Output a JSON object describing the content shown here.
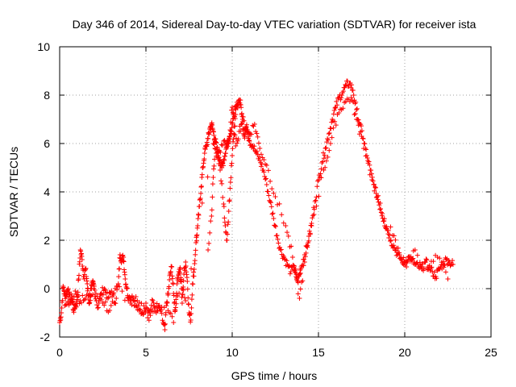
{
  "chart_data": {
    "type": "scatter",
    "title": "Day 346 of 2014, Sidereal Day-to-day VTEC variation (SDTVAR) for receiver ista",
    "xlabel": "GPS time / hours",
    "ylabel": "SDTVAR / TECUs",
    "xlim": [
      0,
      25
    ],
    "ylim": [
      -2,
      10
    ],
    "xticks": [
      "0",
      "5",
      "10",
      "15",
      "20",
      "25"
    ],
    "yticks": [
      "-2",
      "0",
      "2",
      "4",
      "6",
      "8",
      "10"
    ],
    "grid": true,
    "marker": "+",
    "series": [
      {
        "name": "SDTVAR",
        "color": "#ff0000",
        "x": [
          0.0,
          0.1,
          0.2,
          0.3,
          0.4,
          0.5,
          0.6,
          0.7,
          0.8,
          0.9,
          1.0,
          1.1,
          1.2,
          1.3,
          1.4,
          1.5,
          1.6,
          1.7,
          1.8,
          1.9,
          2.0,
          2.2,
          2.4,
          2.6,
          2.8,
          3.0,
          3.2,
          3.4,
          3.5,
          3.6,
          3.7,
          3.8,
          3.9,
          4.0,
          4.2,
          4.4,
          4.6,
          4.8,
          5.0,
          5.2,
          5.4,
          5.6,
          5.8,
          6.0,
          6.1,
          6.2,
          6.3,
          6.4,
          6.5,
          6.6,
          6.7,
          6.8,
          6.9,
          7.0,
          7.1,
          7.2,
          7.3,
          7.4,
          7.5,
          7.6,
          7.7,
          7.8,
          7.9,
          8.0,
          8.1,
          8.2,
          8.3,
          8.4,
          8.5,
          8.6,
          8.7,
          8.8,
          8.9,
          9.0,
          9.1,
          9.2,
          9.3,
          9.4,
          9.5,
          9.6,
          9.7,
          9.8,
          9.9,
          10.0,
          10.1,
          10.2,
          10.3,
          10.4,
          10.5,
          10.6,
          10.7,
          10.8,
          10.9,
          11.0,
          11.2,
          11.4,
          11.6,
          11.8,
          12.0,
          12.2,
          12.4,
          12.6,
          12.8,
          13.0,
          13.2,
          13.4,
          13.6,
          13.7,
          13.8,
          13.9,
          14.0,
          14.2,
          14.4,
          14.6,
          14.8,
          15.0,
          15.2,
          15.4,
          15.6,
          15.8,
          16.0,
          16.2,
          16.4,
          16.6,
          16.8,
          17.0,
          17.2,
          17.4,
          17.6,
          17.8,
          18.0,
          18.2,
          18.4,
          18.6,
          18.8,
          19.0,
          19.2,
          19.4,
          19.6,
          19.8,
          20.0,
          20.2,
          20.4,
          20.6,
          20.8,
          21.0,
          21.2,
          21.4,
          21.6,
          21.8,
          22.0,
          22.2,
          22.4,
          22.6,
          22.8
        ],
        "y": [
          -1.4,
          -1.0,
          0.1,
          -0.3,
          -0.2,
          0.0,
          -0.5,
          -0.3,
          -0.9,
          -0.7,
          -0.6,
          0.4,
          1.6,
          1.2,
          0.5,
          0.8,
          0.2,
          -0.6,
          -0.3,
          0.2,
          0.1,
          -0.8,
          -0.2,
          0.0,
          -0.4,
          -0.1,
          -0.6,
          0.2,
          1.4,
          1.2,
          1.3,
          0.4,
          0.0,
          -0.4,
          -0.3,
          -0.7,
          -0.9,
          -1.0,
          -0.6,
          -1.0,
          -0.5,
          -1.0,
          -0.8,
          -1.4,
          -1.7,
          -0.6,
          -0.2,
          0.6,
          0.9,
          -0.2,
          -0.9,
          0.2,
          0.7,
          0.8,
          -0.6,
          0.6,
          1.1,
          0.3,
          -1.0,
          -1.3,
          0.2,
          0.8,
          1.9,
          2.6,
          3.4,
          4.2,
          5.0,
          5.6,
          5.9,
          6.2,
          6.6,
          6.8,
          6.5,
          6.2,
          5.8,
          5.6,
          5.3,
          5.0,
          5.3,
          5.6,
          6.0,
          6.2,
          6.4,
          6.8,
          7.2,
          7.4,
          7.6,
          7.8,
          7.6,
          6.9,
          6.3,
          6.7,
          6.5,
          6.1,
          5.9,
          5.6,
          5.3,
          4.9,
          4.3,
          3.6,
          2.9,
          2.2,
          1.6,
          1.3,
          1.0,
          0.7,
          0.9,
          0.5,
          0.3,
          0.6,
          0.9,
          1.4,
          1.9,
          2.7,
          3.6,
          4.5,
          5.2,
          5.8,
          6.4,
          7.0,
          7.5,
          7.9,
          8.1,
          8.4,
          8.5,
          8.2,
          7.4,
          6.8,
          6.2,
          5.5,
          4.9,
          4.3,
          3.8,
          3.3,
          2.8,
          2.4,
          2.0,
          1.7,
          1.4,
          1.2,
          1.1,
          1.3,
          1.2,
          1.0,
          0.9,
          0.8,
          1.1,
          0.9,
          0.7,
          0.5,
          0.8,
          1.0,
          1.2,
          1.1,
          1.0
        ],
        "x2": [
          0.3,
          0.6,
          0.9,
          1.2,
          1.5,
          1.8,
          2.1,
          2.5,
          2.9,
          3.3,
          4.1,
          4.5,
          5.1,
          5.5,
          6.2,
          6.6,
          7.0,
          7.3,
          8.9,
          9.2,
          9.5,
          9.8,
          10.0,
          10.2,
          10.4,
          10.6,
          10.8,
          11.0,
          11.3,
          11.6,
          12.0,
          12.5,
          13.1,
          13.5,
          13.9,
          14.2,
          14.6,
          15.3,
          15.7,
          16.1,
          16.5,
          16.9,
          17.2,
          17.5,
          18.1,
          18.7,
          19.3,
          19.7,
          20.1,
          20.6,
          21.3,
          21.9,
          22.5
        ],
        "y2": [
          -0.7,
          -0.6,
          -0.1,
          -0.5,
          -0.4,
          0.0,
          -0.2,
          -0.6,
          -0.9,
          0.1,
          -0.6,
          -0.5,
          -1.2,
          -0.8,
          -0.6,
          -1.4,
          0.3,
          -0.5,
          6.0,
          5.4,
          6.1,
          6.0,
          7.5,
          5.9,
          6.5,
          7.0,
          6.6,
          6.4,
          6.8,
          5.8,
          5.1,
          3.8,
          2.6,
          1.3,
          -0.4,
          1.1,
          2.6,
          4.9,
          6.0,
          7.2,
          7.7,
          7.9,
          7.0,
          6.3,
          4.5,
          3.1,
          2.2,
          1.4,
          0.9,
          1.6,
          0.8,
          1.3,
          0.4
        ],
        "x3": [
          8.6,
          8.8,
          8.9,
          9.0,
          9.3,
          9.5,
          9.6,
          9.7,
          9.8,
          9.9,
          10.0,
          10.1,
          10.2
        ],
        "y3": [
          1.6,
          3.0,
          4.6,
          5.8,
          4.9,
          3.5,
          2.6,
          2.0,
          3.2,
          4.4,
          5.5,
          6.4,
          7.2
        ]
      }
    ]
  }
}
